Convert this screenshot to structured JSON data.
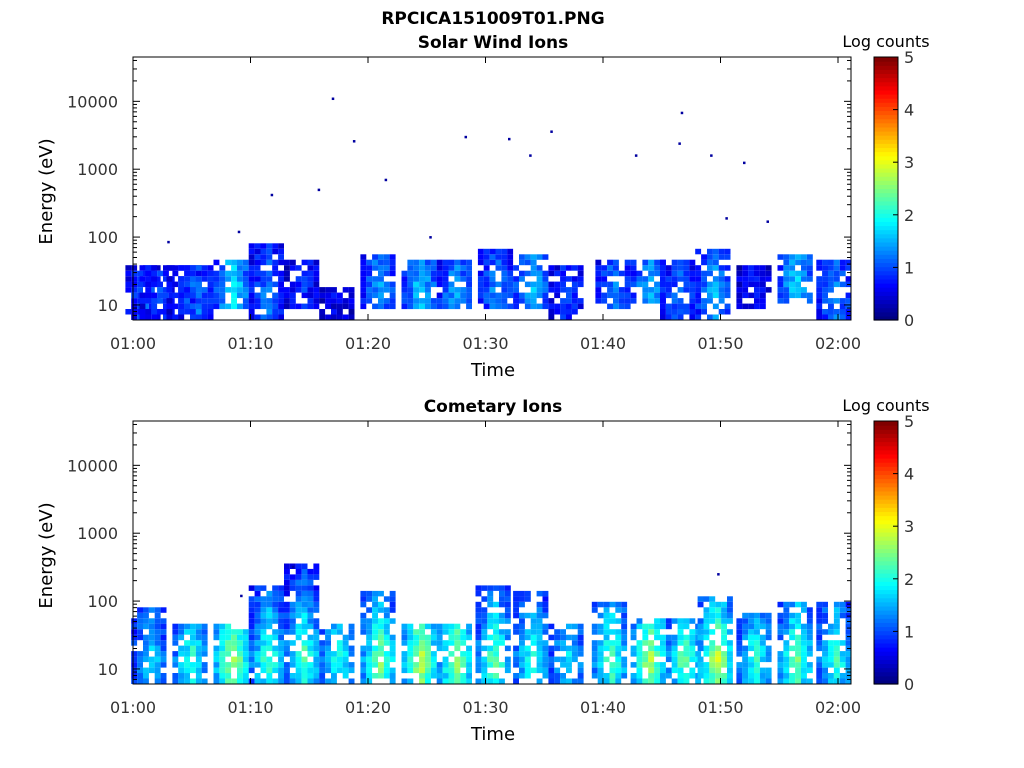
{
  "figure_title": "RPCICA151009T01.PNG",
  "chart_data": [
    {
      "type": "heatmap",
      "title": "Solar Wind Ions",
      "xlabel": "Time",
      "ylabel": "Energy (eV)",
      "x_range": [
        "01:00",
        "02:00"
      ],
      "x_ticks": [
        "01:00",
        "01:10",
        "01:20",
        "01:30",
        "01:40",
        "01:50",
        "02:00"
      ],
      "y_scale": "log",
      "y_range": [
        6,
        45000
      ],
      "y_ticks": [
        "10",
        "100",
        "1000",
        "10000"
      ],
      "colorbar": {
        "label": "Log counts",
        "range": [
          0,
          5
        ],
        "ticks": [
          "0",
          "1",
          "2",
          "3",
          "4",
          "5"
        ],
        "colormap": "jet"
      },
      "bursts": [
        {
          "t": 1.0,
          "e_low": 6,
          "e_high": 34,
          "peak": 1.1
        },
        {
          "t": 2.2,
          "e_low": 6,
          "e_high": 34,
          "peak": 1.0
        },
        {
          "t": 4.5,
          "e_low": 6,
          "e_high": 34,
          "peak": 1.0
        },
        {
          "t": 5.5,
          "e_low": 6,
          "e_high": 34,
          "peak": 1.3
        },
        {
          "t": 8.5,
          "e_low": 10,
          "e_high": 42,
          "peak": 1.9
        },
        {
          "t": 11.5,
          "e_low": 6,
          "e_high": 70,
          "peak": 1.3
        },
        {
          "t": 14.5,
          "e_low": 10,
          "e_high": 42,
          "peak": 0.9
        },
        {
          "t": 17.5,
          "e_low": 6,
          "e_high": 16,
          "peak": 0.6
        },
        {
          "t": 21.0,
          "e_low": 10,
          "e_high": 55,
          "peak": 1.5
        },
        {
          "t": 24.5,
          "e_low": 10,
          "e_high": 42,
          "peak": 1.7
        },
        {
          "t": 27.5,
          "e_low": 10,
          "e_high": 42,
          "peak": 1.5
        },
        {
          "t": 31.0,
          "e_low": 10,
          "e_high": 60,
          "peak": 1.4
        },
        {
          "t": 34.0,
          "e_low": 10,
          "e_high": 55,
          "peak": 1.7
        },
        {
          "t": 37.0,
          "e_low": 6,
          "e_high": 34,
          "peak": 1.0
        },
        {
          "t": 41.0,
          "e_low": 10,
          "e_high": 42,
          "peak": 1.3
        },
        {
          "t": 44.0,
          "e_low": 12,
          "e_high": 42,
          "peak": 1.6
        },
        {
          "t": 46.5,
          "e_low": 6,
          "e_high": 42,
          "peak": 1.2
        },
        {
          "t": 49.5,
          "e_low": 6,
          "e_high": 60,
          "peak": 1.6
        },
        {
          "t": 53.0,
          "e_low": 10,
          "e_high": 34,
          "peak": 0.8
        },
        {
          "t": 56.5,
          "e_low": 12,
          "e_high": 55,
          "peak": 1.8
        },
        {
          "t": 59.8,
          "e_low": 6,
          "e_high": 42,
          "peak": 1.4
        }
      ],
      "dots": [
        {
          "t": 3.0,
          "e": 85
        },
        {
          "t": 9.0,
          "e": 120
        },
        {
          "t": 11.8,
          "e": 420
        },
        {
          "t": 15.8,
          "e": 500
        },
        {
          "t": 17.0,
          "e": 11000
        },
        {
          "t": 18.8,
          "e": 2600
        },
        {
          "t": 21.5,
          "e": 700
        },
        {
          "t": 25.3,
          "e": 100
        },
        {
          "t": 28.3,
          "e": 3000
        },
        {
          "t": 32.0,
          "e": 2800
        },
        {
          "t": 33.8,
          "e": 1600
        },
        {
          "t": 35.6,
          "e": 3600
        },
        {
          "t": 42.8,
          "e": 1600
        },
        {
          "t": 46.5,
          "e": 2400
        },
        {
          "t": 46.7,
          "e": 6800
        },
        {
          "t": 49.2,
          "e": 1600
        },
        {
          "t": 50.5,
          "e": 190
        },
        {
          "t": 52.0,
          "e": 1250
        },
        {
          "t": 54.0,
          "e": 170
        }
      ]
    },
    {
      "type": "heatmap",
      "title": "Cometary Ions",
      "xlabel": "Time",
      "ylabel": "Energy (eV)",
      "x_range": [
        "01:00",
        "02:00"
      ],
      "x_ticks": [
        "01:00",
        "01:10",
        "01:20",
        "01:30",
        "01:40",
        "01:50",
        "02:00"
      ],
      "y_scale": "log",
      "y_range": [
        6,
        45000
      ],
      "y_ticks": [
        "10",
        "100",
        "1000",
        "10000"
      ],
      "colorbar": {
        "label": "Log counts",
        "range": [
          0,
          5
        ],
        "ticks": [
          "0",
          "1",
          "2",
          "3",
          "4",
          "5"
        ],
        "colormap": "jet"
      },
      "bursts": [
        {
          "t": 1.5,
          "e_low": 6,
          "e_high": 75,
          "peak": 1.8
        },
        {
          "t": 5.0,
          "e_low": 6,
          "e_high": 40,
          "peak": 2.2
        },
        {
          "t": 8.5,
          "e_low": 6,
          "e_high": 42,
          "peak": 2.9
        },
        {
          "t": 11.5,
          "e_low": 6,
          "e_high": 160,
          "peak": 2.3
        },
        {
          "t": 14.5,
          "e_low": 6,
          "e_high": 330,
          "peak": 2.4
        },
        {
          "t": 17.5,
          "e_low": 6,
          "e_high": 45,
          "peak": 2.1
        },
        {
          "t": 21.0,
          "e_low": 6,
          "e_high": 140,
          "peak": 2.6
        },
        {
          "t": 24.5,
          "e_low": 6,
          "e_high": 42,
          "peak": 2.9
        },
        {
          "t": 27.5,
          "e_low": 6,
          "e_high": 42,
          "peak": 2.7
        },
        {
          "t": 30.8,
          "e_low": 6,
          "e_high": 160,
          "peak": 2.4
        },
        {
          "t": 34.0,
          "e_low": 6,
          "e_high": 120,
          "peak": 2.2
        },
        {
          "t": 37.0,
          "e_low": 6,
          "e_high": 42,
          "peak": 1.9
        },
        {
          "t": 40.7,
          "e_low": 6,
          "e_high": 90,
          "peak": 2.4
        },
        {
          "t": 44.0,
          "e_low": 6,
          "e_high": 55,
          "peak": 2.8
        },
        {
          "t": 47.0,
          "e_low": 6,
          "e_high": 55,
          "peak": 2.5
        },
        {
          "t": 49.7,
          "e_low": 6,
          "e_high": 110,
          "peak": 2.9
        },
        {
          "t": 53.0,
          "e_low": 6,
          "e_high": 60,
          "peak": 2.2
        },
        {
          "t": 56.5,
          "e_low": 6,
          "e_high": 85,
          "peak": 2.5
        },
        {
          "t": 59.8,
          "e_low": 6,
          "e_high": 85,
          "peak": 2.2
        }
      ],
      "dots": [
        {
          "t": 9.2,
          "e": 120
        },
        {
          "t": 13.6,
          "e": 320
        },
        {
          "t": 49.8,
          "e": 250
        }
      ]
    }
  ]
}
